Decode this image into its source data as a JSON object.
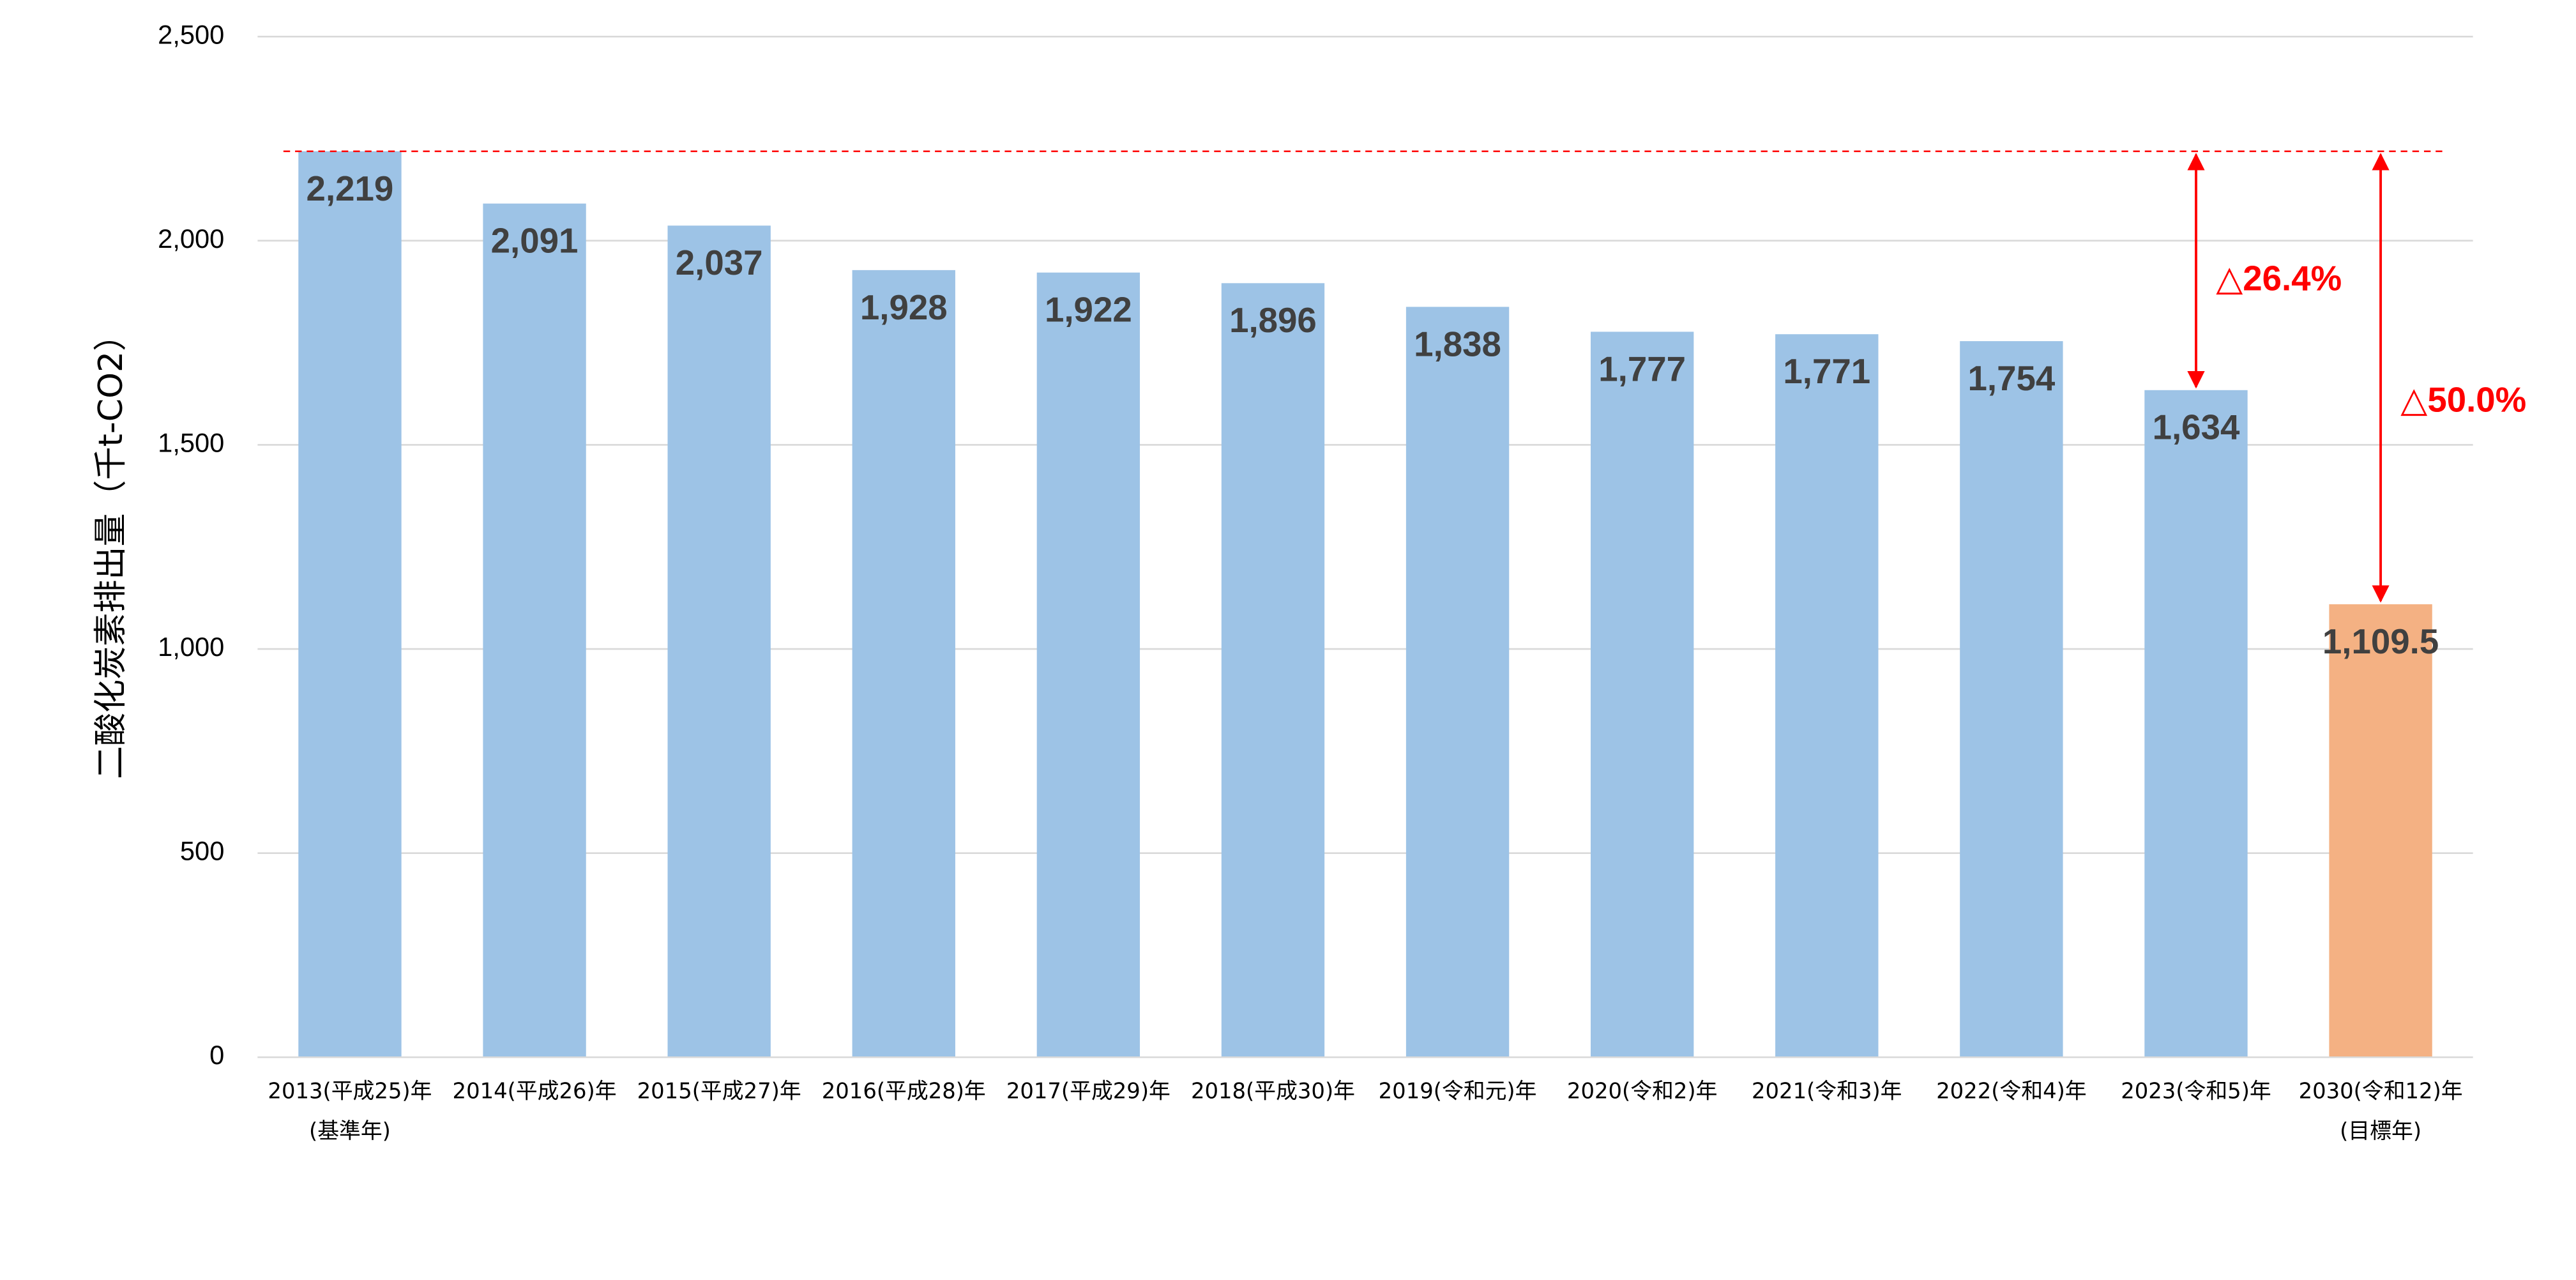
{
  "chart_data": {
    "type": "bar",
    "y_label": "二酸化炭素排出量（千t-CO2）",
    "categories": [
      [
        "2013(平成25)年",
        "(基準年)"
      ],
      [
        "2014(平成26)年"
      ],
      [
        "2015(平成27)年"
      ],
      [
        "2016(平成28)年"
      ],
      [
        "2017(平成29)年"
      ],
      [
        "2018(平成30)年"
      ],
      [
        "2019(令和元)年"
      ],
      [
        "2020(令和2)年"
      ],
      [
        "2021(令和3)年"
      ],
      [
        "2022(令和4)年"
      ],
      [
        "2023(令和5)年"
      ],
      [
        "2030(令和12)年",
        "(目標年)"
      ]
    ],
    "values": [
      2219,
      2091,
      2037,
      1928,
      1922,
      1896,
      1838,
      1777,
      1771,
      1754,
      1634,
      1109.5
    ],
    "value_labels": [
      "2,219",
      "2,091",
      "2,037",
      "1,928",
      "1,922",
      "1,896",
      "1,838",
      "1,777",
      "1,771",
      "1,754",
      "1,634",
      "1,109.5"
    ],
    "colors": [
      "#9dc3e6",
      "#9dc3e6",
      "#9dc3e6",
      "#9dc3e6",
      "#9dc3e6",
      "#9dc3e6",
      "#9dc3e6",
      "#9dc3e6",
      "#9dc3e6",
      "#9dc3e6",
      "#9dc3e6",
      "#f4b183"
    ],
    "ylim": [
      0,
      2500
    ],
    "yticks": [
      0,
      500,
      {
        "value": 1000,
        "label": "1,000"
      },
      {
        "value": 1500,
        "label": "1,500"
      },
      {
        "value": 2000,
        "label": "2,000"
      },
      {
        "value": 2500,
        "label": "2,500"
      }
    ],
    "grid": true,
    "annotations": [
      "△26.4%",
      "△50.0%"
    ],
    "annotation_color": "#ff0000"
  }
}
